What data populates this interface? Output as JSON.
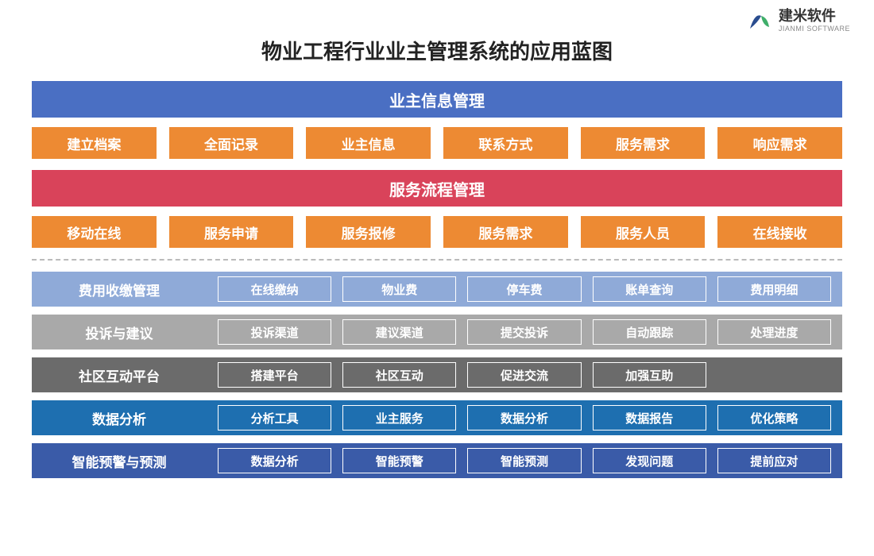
{
  "logo": {
    "cn": "建米软件",
    "en": "JIANMI SOFTWARE"
  },
  "title": "物业工程行业业主管理系统的应用蓝图",
  "colors": {
    "blue": "#4a6fc3",
    "orange": "#ed8a33",
    "red": "#d9435a",
    "row1": "#8faad8",
    "row2": "#a9a9a9",
    "row3": "#6b6b6b",
    "row4": "#1e6fb0",
    "row5": "#3a5ba8"
  },
  "header1": "业主信息管理",
  "row1": [
    "建立档案",
    "全面记录",
    "业主信息",
    "联系方式",
    "服务需求",
    "响应需求"
  ],
  "header2": "服务流程管理",
  "row2": [
    "移动在线",
    "服务申请",
    "服务报修",
    "服务需求",
    "服务人员",
    "在线接收"
  ],
  "sections": [
    {
      "label": "费用收缴管理",
      "bg": "#8faad8",
      "items": [
        "在线缴纳",
        "物业费",
        "停车费",
        "账单查询",
        "费用明细"
      ]
    },
    {
      "label": "投诉与建议",
      "bg": "#a9a9a9",
      "items": [
        "投诉渠道",
        "建议渠道",
        "提交投诉",
        "自动跟踪",
        "处理进度"
      ]
    },
    {
      "label": "社区互动平台",
      "bg": "#6b6b6b",
      "items": [
        "搭建平台",
        "社区互动",
        "促进交流",
        "加强互助"
      ]
    },
    {
      "label": "数据分析",
      "bg": "#1e6fb0",
      "items": [
        "分析工具",
        "业主服务",
        "数据分析",
        "数据报告",
        "优化策略"
      ]
    },
    {
      "label": "智能预警与预测",
      "bg": "#3a5ba8",
      "items": [
        "数据分析",
        "智能预警",
        "智能预测",
        "发现问题",
        "提前应对"
      ]
    }
  ]
}
